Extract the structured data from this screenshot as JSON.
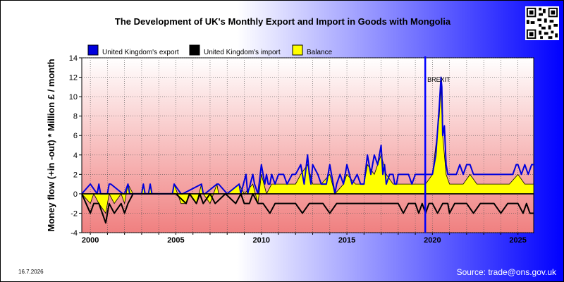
{
  "page": {
    "title": "The Development of UK's Monthly Export and Import in Goods with Mongolia",
    "date_stamp": "16.7.2026",
    "source": "Source: trade@ons.gov.uk"
  },
  "colors": {
    "export": "#0000dd",
    "import": "#000000",
    "balance": "#ffff00",
    "brexit_line": "#0000ff"
  },
  "chart_data": {
    "type": "line",
    "title": "The Development of UK's Monthly Export and Import in Goods with Mongolia",
    "xlabel": "",
    "ylabel": "Money flow (+in -out) * Million £ / month",
    "xlim": [
      1999.5,
      2025.92
    ],
    "ylim": [
      -4,
      14
    ],
    "yticks": [
      -4,
      -2,
      0,
      2,
      4,
      6,
      8,
      10,
      12,
      14
    ],
    "xticks": [
      2000,
      2005,
      2010,
      2015,
      2020,
      2025
    ],
    "grid": true,
    "legend_position": "top",
    "annotations": [
      {
        "text": "BREXIT",
        "x": 2019.58
      }
    ],
    "series": [
      {
        "name": "United Kingdom's export",
        "x": [
          1999.5,
          2000.0,
          2000.4,
          2000.5,
          2000.6,
          2001.0,
          2001.1,
          2001.2,
          2001.9,
          2002.0,
          2002.2,
          2002.3,
          2003.0,
          2003.1,
          2003.2,
          2003.4,
          2003.5,
          2003.6,
          2004.8,
          2004.9,
          2005.3,
          2005.4,
          2006.5,
          2006.6,
          2006.7,
          2007.4,
          2007.5,
          2008.0,
          2008.7,
          2008.8,
          2009.1,
          2009.2,
          2009.5,
          2009.6,
          2009.8,
          2010.0,
          2010.2,
          2010.3,
          2010.4,
          2010.5,
          2010.6,
          2010.8,
          2011.0,
          2011.3,
          2011.5,
          2011.8,
          2012.0,
          2012.3,
          2012.5,
          2012.7,
          2012.8,
          2012.9,
          2013.0,
          2013.3,
          2013.5,
          2013.8,
          2014.0,
          2014.2,
          2014.3,
          2014.4,
          2014.6,
          2014.8,
          2015.0,
          2015.3,
          2015.6,
          2015.8,
          2016.0,
          2016.2,
          2016.4,
          2016.6,
          2016.8,
          2017.0,
          2017.1,
          2017.2,
          2017.3,
          2017.5,
          2017.7,
          2017.8,
          2017.9,
          2018.0,
          2018.2,
          2018.4,
          2018.6,
          2018.8,
          2019.0,
          2019.3,
          2019.6,
          2019.8,
          2020.0,
          2020.2,
          2020.4,
          2020.5,
          2020.55,
          2020.6,
          2020.7,
          2020.8,
          2020.9,
          2021.0,
          2021.2,
          2021.4,
          2021.6,
          2021.8,
          2022.0,
          2022.2,
          2022.4,
          2022.6,
          2022.8,
          2023.0,
          2023.2,
          2023.5,
          2023.8,
          2024.0,
          2024.3,
          2024.5,
          2024.7,
          2024.9,
          2025.0,
          2025.2,
          2025.4,
          2025.6,
          2025.8,
          2025.92
        ],
        "values": [
          0,
          1,
          0,
          1,
          0,
          0,
          1,
          1,
          0,
          0,
          1,
          0,
          0,
          1,
          0,
          0,
          1,
          0,
          0,
          1,
          0,
          0,
          1,
          0,
          0,
          1,
          1,
          0,
          1,
          0,
          2,
          0,
          2,
          1,
          0,
          3,
          1,
          2,
          1,
          1,
          2,
          1,
          2,
          2,
          1,
          2,
          2,
          3,
          1,
          4,
          2,
          1,
          3,
          2,
          1,
          1,
          3,
          1,
          0,
          1,
          2,
          1,
          3,
          1,
          2,
          1,
          1,
          4,
          2,
          4,
          3,
          5,
          2,
          3,
          1,
          2,
          2,
          1,
          1,
          2,
          2,
          2,
          2,
          1,
          2,
          2,
          2,
          2,
          2,
          4,
          9,
          12,
          11,
          6,
          7,
          3,
          2,
          2,
          2,
          2,
          3,
          2,
          3,
          3,
          2,
          2,
          2,
          2,
          2,
          2,
          2,
          2,
          2,
          2,
          2,
          3,
          3,
          2,
          3,
          2,
          3,
          3
        ]
      },
      {
        "name": "United Kingdom's import",
        "x": [
          1999.5,
          2000.0,
          2000.2,
          2000.5,
          2000.9,
          2001.1,
          2001.4,
          2001.8,
          2002.0,
          2002.2,
          2002.5,
          2003.0,
          2004.0,
          2005.0,
          2005.6,
          2005.8,
          2006.2,
          2006.4,
          2006.6,
          2007.0,
          2007.3,
          2007.9,
          2008.5,
          2008.8,
          2009.0,
          2009.3,
          2009.5,
          2009.8,
          2010.1,
          2010.5,
          2010.8,
          2011.2,
          2011.6,
          2012.0,
          2012.4,
          2012.8,
          2013.2,
          2013.6,
          2014.0,
          2014.4,
          2014.8,
          2015.2,
          2015.6,
          2016.0,
          2016.4,
          2016.8,
          2017.2,
          2017.6,
          2018.0,
          2018.3,
          2018.6,
          2019.0,
          2019.2,
          2019.4,
          2019.6,
          2019.8,
          2020.0,
          2020.3,
          2020.6,
          2020.9,
          2021.0,
          2021.3,
          2021.6,
          2022.0,
          2022.4,
          2022.8,
          2023.2,
          2023.6,
          2024.0,
          2024.4,
          2024.8,
          2025.0,
          2025.3,
          2025.5,
          2025.7,
          2025.92
        ],
        "values": [
          0,
          -2,
          -1,
          -1,
          -3,
          -1,
          -2,
          -1,
          -2,
          -1,
          0,
          0,
          0,
          0,
          -1,
          0,
          -1,
          0,
          -1,
          0,
          -1,
          0,
          -1,
          0,
          -1,
          -1,
          0,
          -1,
          -1,
          -2,
          -1,
          -1,
          -1,
          -1,
          -2,
          -1,
          -1,
          -1,
          -2,
          -1,
          -1,
          -1,
          -1,
          -1,
          -1,
          -1,
          -1,
          -1,
          -1,
          -2,
          -1,
          -1,
          -2,
          -1,
          -2,
          -1,
          -1,
          -2,
          -1,
          -1,
          -2,
          -1,
          -1,
          -1,
          -2,
          -1,
          -1,
          -1,
          -2,
          -1,
          -1,
          -1,
          -2,
          -1,
          -2,
          -2
        ]
      },
      {
        "name": "Balance",
        "x": [
          1999.5,
          2000.0,
          2000.2,
          2000.5,
          2000.9,
          2001.1,
          2001.4,
          2001.8,
          2002.0,
          2002.2,
          2002.5,
          2003.0,
          2003.1,
          2003.2,
          2003.4,
          2003.5,
          2003.6,
          2004.8,
          2004.9,
          2005.3,
          2005.6,
          2005.8,
          2006.2,
          2006.5,
          2006.6,
          2007.0,
          2007.4,
          2007.5,
          2008.0,
          2008.7,
          2009.0,
          2009.5,
          2009.8,
          2010.0,
          2010.3,
          2010.6,
          2011.0,
          2011.5,
          2012.0,
          2012.3,
          2012.7,
          2013.0,
          2013.5,
          2014.0,
          2014.3,
          2014.8,
          2015.0,
          2015.5,
          2016.0,
          2016.2,
          2016.6,
          2017.0,
          2017.3,
          2017.7,
          2018.0,
          2018.4,
          2018.8,
          2019.2,
          2019.6,
          2020.0,
          2020.4,
          2020.5,
          2020.6,
          2020.8,
          2021.0,
          2021.4,
          2021.8,
          2022.2,
          2022.6,
          2023.0,
          2023.5,
          2024.0,
          2024.5,
          2025.0,
          2025.4,
          2025.7,
          2025.92
        ],
        "values": [
          0,
          -1,
          0,
          -1,
          -2,
          0,
          -1,
          0,
          -1,
          1,
          0,
          0,
          1,
          0,
          0,
          1,
          0,
          0,
          1,
          -1,
          -1,
          0,
          -1,
          1,
          0,
          -1,
          1,
          0,
          0,
          1,
          0,
          1,
          -1,
          2,
          0,
          1,
          1,
          1,
          1,
          2,
          3,
          1,
          1,
          2,
          0,
          1,
          2,
          1,
          1,
          3,
          2,
          4,
          2,
          1,
          1,
          1,
          1,
          1,
          1,
          2,
          8,
          11,
          6,
          2,
          1,
          1,
          1,
          2,
          1,
          1,
          1,
          1,
          1,
          2,
          1,
          1,
          1
        ]
      }
    ]
  }
}
